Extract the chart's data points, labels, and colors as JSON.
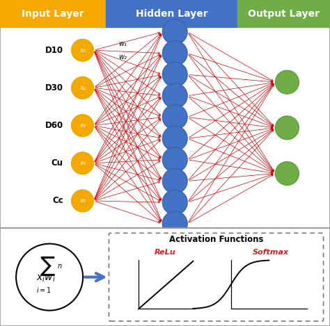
{
  "title_input": "Input Layer",
  "title_hidden": "Hidden Layer",
  "title_output": "Output Layer",
  "input_labels": [
    "D10",
    "D30",
    "D60",
    "Cu",
    "Cc"
  ],
  "input_sublabels": [
    "x₁",
    "x₂",
    "x₃",
    "x₄",
    "x₅"
  ],
  "input_color": "#F5A800",
  "hidden_color": "#4472C4",
  "output_color": "#70AD47",
  "header_input_color": "#F5A800",
  "header_hidden_color": "#4472C4",
  "header_output_color": "#70AD47",
  "header_text_color": "#FFFFFF",
  "connection_color": "#CC0000",
  "arrow_color": "#4472C4",
  "background_color": "#FFFFFF",
  "panel_bg": "#EEF2F7",
  "border_color": "#999999",
  "num_input": 5,
  "num_hidden": 10,
  "num_output": 3,
  "weight_labels": [
    "w₁",
    "w₂"
  ],
  "activation_title": "Activation Functions",
  "relu_label": "ReLu",
  "softmax_label": "Softmax"
}
